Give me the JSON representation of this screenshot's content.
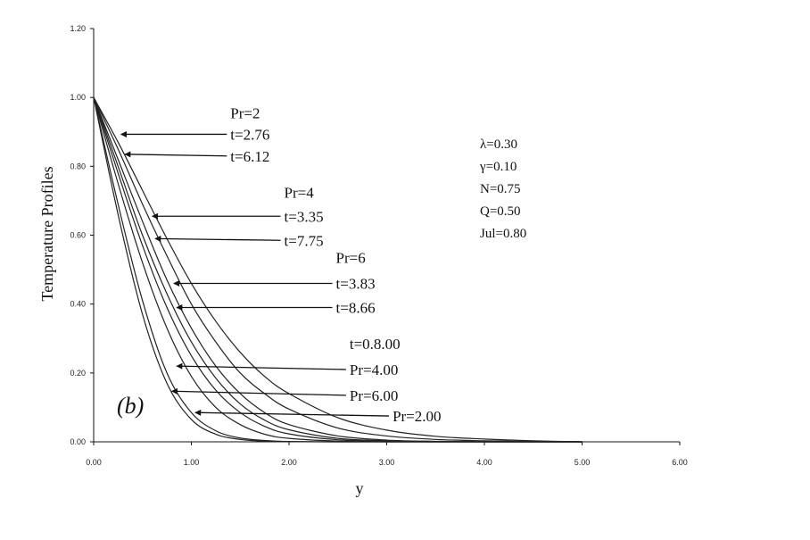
{
  "chart_data": {
    "type": "line",
    "title": "",
    "xlabel": "y",
    "ylabel": "Temperature Profiles",
    "xlim": [
      0,
      6
    ],
    "ylim": [
      0,
      1.2
    ],
    "xticks": [
      "0.00",
      "1.00",
      "2.00",
      "3.00",
      "4.00",
      "5.00",
      "6.00"
    ],
    "xtick_values": [
      0,
      1,
      2,
      3,
      4,
      5,
      6
    ],
    "yticks": [
      "0.00",
      "0.20",
      "0.40",
      "0.60",
      "0.80",
      "1.00",
      "1.20"
    ],
    "ytick_values": [
      0,
      0.2,
      0.4,
      0.6,
      0.8,
      1.0,
      1.2
    ],
    "grid": false,
    "x": [
      0,
      0.25,
      0.5,
      0.75,
      1.0,
      1.25,
      1.5,
      1.75,
      2.0,
      2.5,
      3.0,
      3.5,
      4.0,
      4.5,
      5.0
    ],
    "series": [
      {
        "values": [
          1.0,
          0.66,
          0.37,
          0.17,
          0.065,
          0.022,
          0.007,
          0.002,
          0.0005,
          0.0,
          0.0,
          0.0,
          0.0,
          0.0,
          0.0
        ]
      },
      {
        "values": [
          1.0,
          0.69,
          0.41,
          0.2,
          0.085,
          0.032,
          0.011,
          0.004,
          0.001,
          0.0,
          0.0,
          0.0,
          0.0,
          0.0,
          0.0
        ]
      },
      {
        "values": [
          1.0,
          0.75,
          0.52,
          0.33,
          0.19,
          0.1,
          0.05,
          0.022,
          0.01,
          0.002,
          0.0,
          0.0,
          0.0,
          0.0,
          0.0
        ]
      },
      {
        "values": [
          1.0,
          0.78,
          0.57,
          0.39,
          0.25,
          0.15,
          0.085,
          0.045,
          0.023,
          0.006,
          0.0015,
          0.0,
          0.0,
          0.0,
          0.0
        ]
      },
      {
        "values": [
          1.0,
          0.8,
          0.6,
          0.43,
          0.29,
          0.185,
          0.11,
          0.063,
          0.035,
          0.01,
          0.003,
          0.001,
          0.0,
          0.0,
          0.0
        ]
      },
      {
        "values": [
          1.0,
          0.82,
          0.64,
          0.47,
          0.33,
          0.22,
          0.14,
          0.085,
          0.05,
          0.017,
          0.005,
          0.0015,
          0.0005,
          0.0,
          0.0
        ]
      },
      {
        "values": [
          1.0,
          0.85,
          0.69,
          0.54,
          0.4,
          0.29,
          0.2,
          0.14,
          0.095,
          0.04,
          0.017,
          0.007,
          0.003,
          0.001,
          0.0
        ]
      },
      {
        "values": [
          1.0,
          0.87,
          0.73,
          0.59,
          0.46,
          0.35,
          0.26,
          0.19,
          0.14,
          0.07,
          0.034,
          0.016,
          0.008,
          0.003,
          0.0
        ]
      }
    ],
    "panel_label": "(b)",
    "parameters": [
      "λ=0.30",
      "γ=0.10",
      "N=0.75",
      "Q=0.50",
      "Jul=0.80"
    ],
    "annotations": [
      {
        "text": "Pr=2",
        "x": 1.4,
        "y": 0.955
      },
      {
        "text": "t=2.76",
        "x": 1.4,
        "y": 0.893,
        "arrow_to": [
          0.28,
          0.893
        ]
      },
      {
        "text": "t=6.12",
        "x": 1.4,
        "y": 0.83,
        "arrow_to": [
          0.32,
          0.835
        ]
      },
      {
        "text": "Pr=4",
        "x": 1.95,
        "y": 0.725
      },
      {
        "text": "t=3.35",
        "x": 1.95,
        "y": 0.655,
        "arrow_to": [
          0.6,
          0.655
        ]
      },
      {
        "text": "t=7.75",
        "x": 1.95,
        "y": 0.585,
        "arrow_to": [
          0.63,
          0.59
        ]
      },
      {
        "text": "Pr=6",
        "x": 2.48,
        "y": 0.535
      },
      {
        "text": "t=3.83",
        "x": 2.48,
        "y": 0.46,
        "arrow_to": [
          0.82,
          0.46
        ]
      },
      {
        "text": "t=8.66",
        "x": 2.48,
        "y": 0.39,
        "arrow_to": [
          0.85,
          0.39
        ]
      },
      {
        "text": "t=0.8.00",
        "x": 2.62,
        "y": 0.285
      },
      {
        "text": "Pr=4.00",
        "x": 2.62,
        "y": 0.21,
        "arrow_to": [
          0.85,
          0.22
        ]
      },
      {
        "text": "Pr=6.00",
        "x": 2.62,
        "y": 0.135,
        "arrow_to": [
          0.8,
          0.147
        ]
      },
      {
        "text": "Pr=2.00",
        "x": 3.06,
        "y": 0.075,
        "arrow_to": [
          1.04,
          0.085
        ]
      }
    ]
  }
}
